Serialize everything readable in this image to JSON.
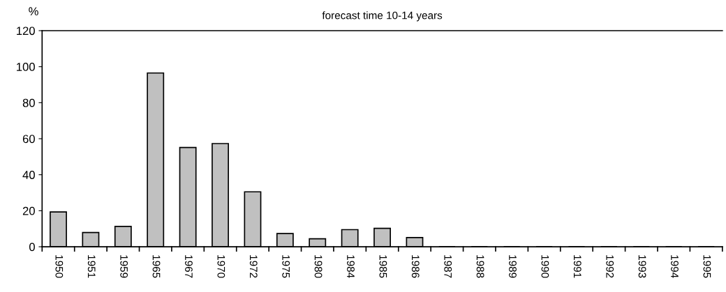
{
  "chart_data": {
    "type": "bar",
    "title": "forecast time 10-14 years",
    "ylabel": "%",
    "categories": [
      "1950",
      "1951",
      "1959",
      "1965",
      "1967",
      "1970",
      "1972",
      "1975",
      "1980",
      "1984",
      "1985",
      "1986",
      "1987",
      "1988",
      "1989",
      "1990",
      "1991",
      "1992",
      "1993",
      "1994",
      "1995"
    ],
    "values": [
      19.3,
      7.9,
      11.3,
      96.5,
      55.1,
      57.3,
      30.5,
      7.3,
      4.4,
      9.5,
      10.2,
      5.1,
      0,
      0,
      0,
      0,
      0,
      0,
      0,
      0,
      0
    ],
    "color": "#c0c0c0",
    "ylim": [
      0,
      120
    ],
    "yticks": [
      0,
      20,
      40,
      60,
      80,
      100,
      120
    ],
    "grid": false,
    "legend": false
  }
}
